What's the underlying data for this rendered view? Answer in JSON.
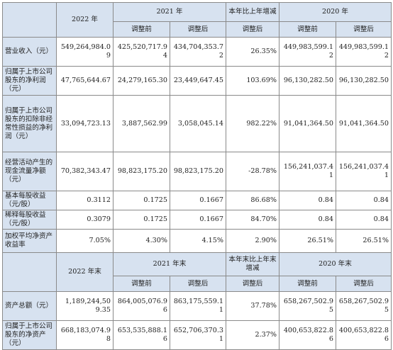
{
  "section1": {
    "header": {
      "year_2022": "2022 年",
      "year_2021": "2021 年",
      "change": "本年比上年增减",
      "year_2020": "2020 年"
    },
    "subheader": {
      "before": "调整前",
      "after": "调整后",
      "change_after": "调整后",
      "before_2020": "调整前",
      "after_2020": "调整后"
    },
    "rows": [
      {
        "label": "营业收入（元）",
        "v2022": "549,264,984.09",
        "v2021_before": "425,520,717.94",
        "v2021_after": "434,704,353.72",
        "change": "26.35%",
        "v2020_before": "449,983,599.12",
        "v2020_after": "449,983,599.12"
      },
      {
        "label": "归属于上市公司股东的净利润（元）",
        "v2022": "47,765,644.67",
        "v2021_before": "24,279,165.30",
        "v2021_after": "23,449,647.45",
        "change": "103.69%",
        "v2020_before": "96,130,282.50",
        "v2020_after": "96,130,282.50"
      },
      {
        "label": "归属于上市公司股东的扣除非经常性损益的净利润（元）",
        "v2022": "33,094,723.13",
        "v2021_before": "3,887,562.99",
        "v2021_after": "3,058,045.14",
        "change": "982.22%",
        "v2020_before": "91,041,364.50",
        "v2020_after": "91,041,364.50"
      },
      {
        "label": "经营活动产生的现金流量净额（元）",
        "v2022": "70,382,343.47",
        "v2021_before": "98,823,175.20",
        "v2021_after": "98,823,175.20",
        "change": "-28.78%",
        "v2020_before": "156,241,037.41",
        "v2020_after": "156,241,037.41"
      },
      {
        "label": "基本每股收益（元/股）",
        "v2022": "0.3112",
        "v2021_before": "0.1725",
        "v2021_after": "0.1667",
        "change": "86.68%",
        "v2020_before": "0.84",
        "v2020_after": "0.84"
      },
      {
        "label": "稀释每股收益（元/股）",
        "v2022": "0.3079",
        "v2021_before": "0.1725",
        "v2021_after": "0.1667",
        "change": "84.70%",
        "v2020_before": "0.84",
        "v2020_after": "0.84"
      },
      {
        "label": "加权平均净资产收益率",
        "v2022": "7.05%",
        "v2021_before": "4.30%",
        "v2021_after": "4.15%",
        "change": "2.90%",
        "v2020_before": "26.51%",
        "v2020_after": "26.51%"
      }
    ]
  },
  "section2": {
    "header": {
      "year_2022": "2022 年末",
      "year_2021": "2021 年末",
      "change": "本年末比上年末增减",
      "year_2020": "2020 年末"
    },
    "subheader": {
      "before": "调整前",
      "after": "调整后",
      "change_after": "调整后",
      "before_2020": "调整前",
      "after_2020": "调整后"
    },
    "rows": [
      {
        "label": "资产总额（元）",
        "v2022": "1,189,244,509.35",
        "v2021_before": "864,005,076.96",
        "v2021_after": "863,175,559.11",
        "change": "37.78%",
        "v2020_before": "658,267,502.95",
        "v2020_after": "658,267,502.95"
      },
      {
        "label": "归属于上市公司股东的净资产（元）",
        "v2022": "668,183,074.98",
        "v2021_before": "653,535,888.16",
        "v2021_after": "652,706,370.31",
        "change": "2.37%",
        "v2020_before": "400,653,822.86",
        "v2020_after": "400,653,822.86"
      }
    ]
  }
}
